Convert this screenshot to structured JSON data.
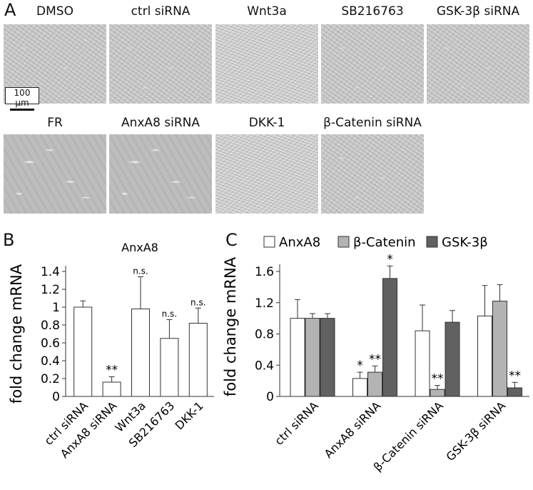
{
  "panel_a": {
    "letter": "A",
    "row1": [
      "DMSO",
      "ctrl siRNA",
      "Wnt3a",
      "SB216763",
      "GSK-3β siRNA"
    ],
    "row2": [
      "FR",
      "AnxA8 siRNA",
      "DKK-1",
      "β-Catenin siRNA"
    ],
    "scale_bar": "100 µm"
  },
  "panel_b": {
    "letter": "B"
  },
  "panel_c": {
    "letter": "C"
  },
  "chart_data": [
    {
      "type": "bar",
      "title": "AnxA8",
      "ylabel": "fold change mRNA",
      "ylim": [
        0,
        1.4
      ],
      "yticks": [
        "0",
        "0.2",
        "0.4",
        "0.6",
        "0.8",
        "1",
        "1.2",
        "1.4"
      ],
      "categories": [
        "ctrl siRNA",
        "AnxA8 siRNA",
        "Wnt3a",
        "SB216763",
        "DKK-1"
      ],
      "values": [
        1.0,
        0.16,
        0.98,
        0.65,
        0.82
      ],
      "errors": [
        0.07,
        0.06,
        0.36,
        0.21,
        0.17
      ],
      "annotations": [
        "",
        "**",
        "n.s.",
        "n.s.",
        "n.s."
      ],
      "colors": [
        "#ffffff"
      ]
    },
    {
      "type": "bar",
      "ylabel": "fold change mRNA",
      "ylim": [
        0,
        1.6
      ],
      "yticks": [
        "0",
        "0.4",
        "0.8",
        "1.2",
        "1.6"
      ],
      "categories": [
        "ctrl siRNA",
        "AnxA8 siRNA",
        "β-Catenin siRNA",
        "GSK-3β siRNA"
      ],
      "legend": "top",
      "series": [
        {
          "name": "AnxA8",
          "color": "#ffffff",
          "values": [
            1.0,
            0.23,
            0.84,
            1.03
          ],
          "errors": [
            0.24,
            0.08,
            0.33,
            0.39
          ],
          "annotations": [
            "",
            "*",
            "",
            ""
          ]
        },
        {
          "name": "β-Catenin",
          "color": "#b3b3b3",
          "values": [
            1.0,
            0.31,
            0.09,
            1.22
          ],
          "errors": [
            0.06,
            0.08,
            0.05,
            0.21
          ],
          "annotations": [
            "",
            "**",
            "**",
            ""
          ]
        },
        {
          "name": "GSK-3β",
          "color": "#616161",
          "values": [
            1.0,
            1.51,
            0.95,
            0.11
          ],
          "errors": [
            0.06,
            0.16,
            0.15,
            0.07
          ],
          "annotations": [
            "",
            "*",
            "",
            "**"
          ]
        }
      ]
    }
  ]
}
